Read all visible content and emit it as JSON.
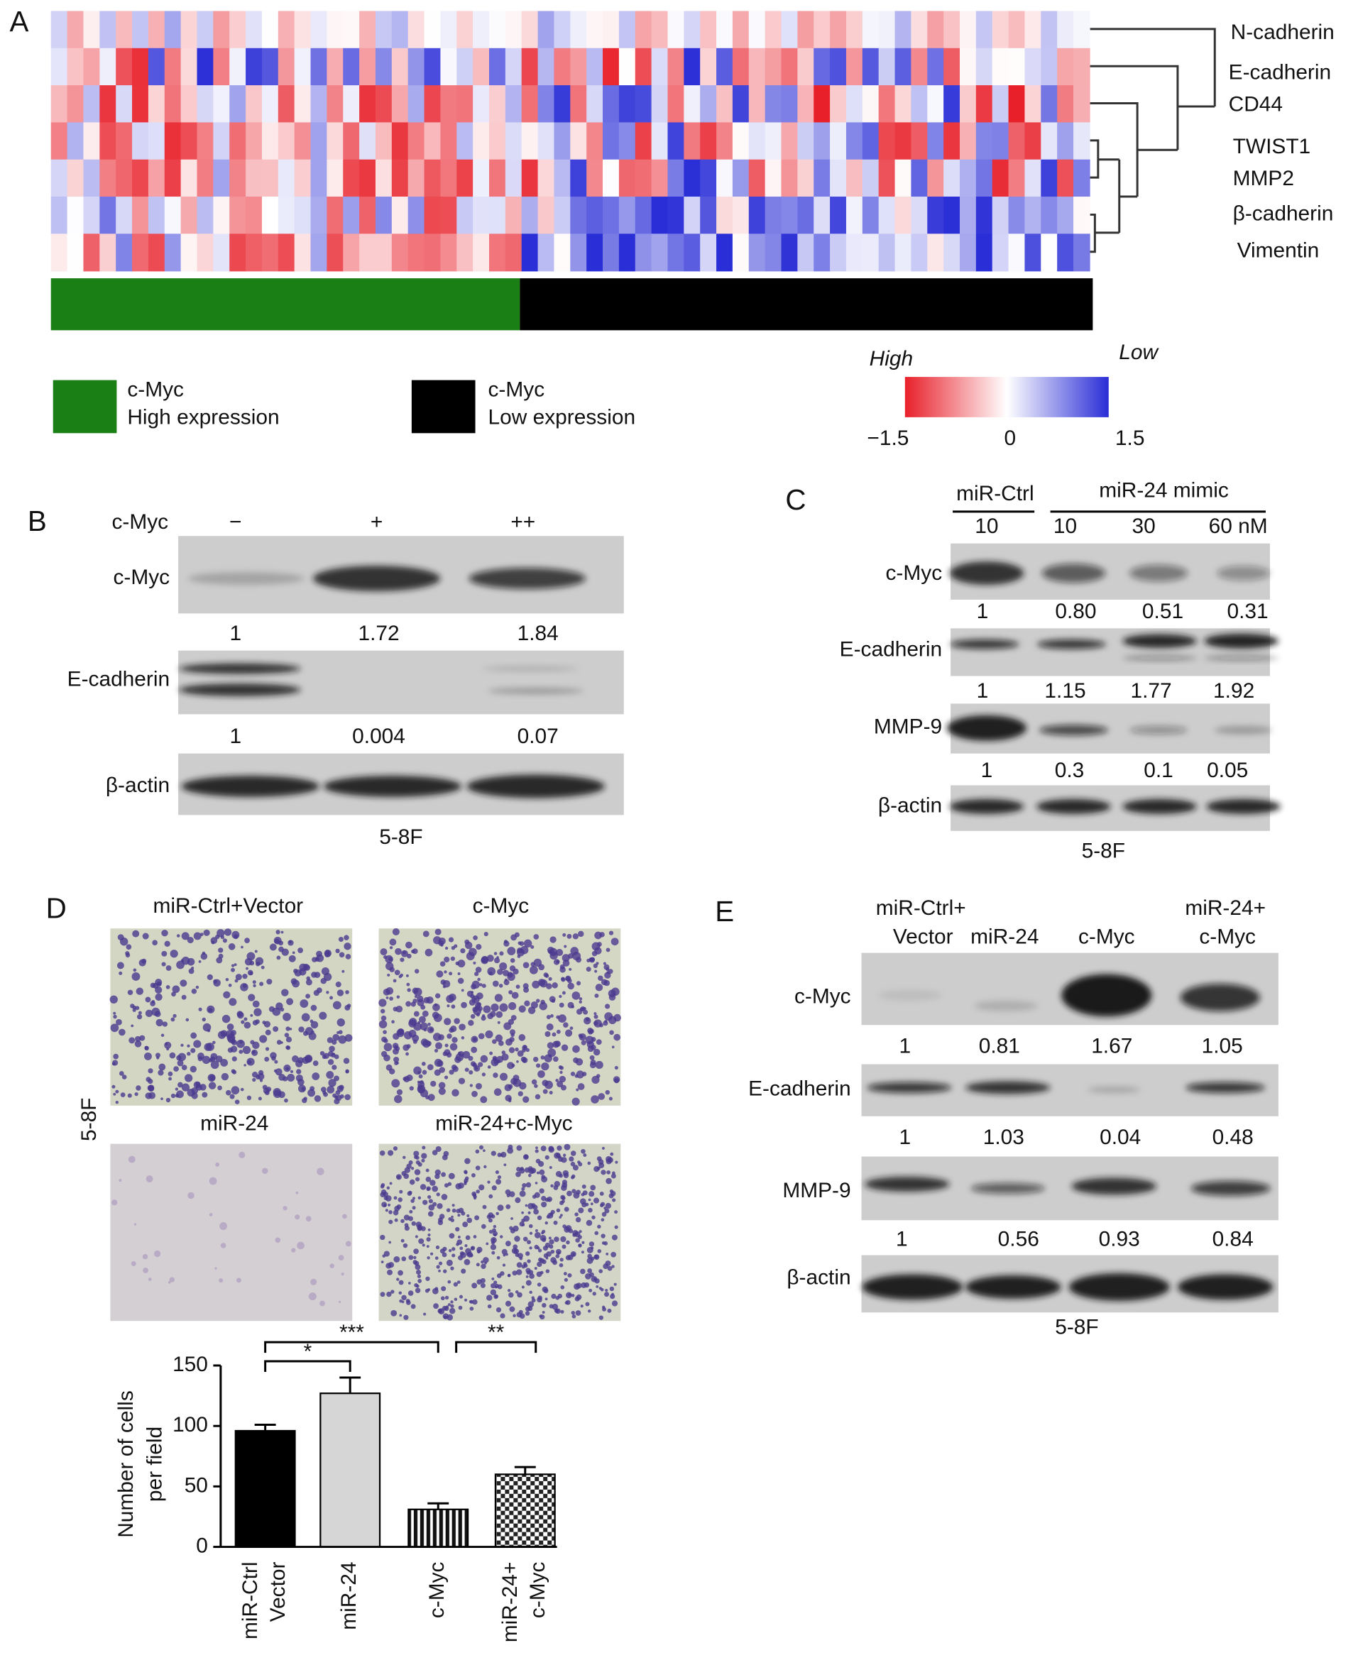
{
  "panels": {
    "A": {
      "label": "A",
      "genes": [
        "N-cadherin",
        "E-cadherin",
        "CD44",
        "TWIST1",
        "MMP2",
        "β-cadherin",
        "Vimentin"
      ],
      "legend": [
        {
          "title": "c-Myc",
          "text": "High expression"
        },
        {
          "title": "c-Myc",
          "text": "Low expression"
        }
      ],
      "colorbar": {
        "high": "High",
        "low": "Low",
        "ticks": [
          "−1.5",
          "0",
          "1.5"
        ]
      }
    },
    "B": {
      "label": "B",
      "condition": "c-Myc",
      "levels": [
        "−",
        "+",
        "++"
      ],
      "rows": [
        {
          "name": "c-Myc",
          "quant": [
            "1",
            "1.72",
            "1.84"
          ]
        },
        {
          "name": "E-cadherin",
          "quant": [
            "1",
            "0.004",
            "0.07"
          ]
        },
        {
          "name": "β-actin"
        }
      ],
      "cell_line": "5-8F"
    },
    "C": {
      "label": "C",
      "groups": [
        "miR-Ctrl",
        "miR-24 mimic"
      ],
      "doses": [
        "10",
        "10",
        "30",
        "60 nM"
      ],
      "rows": [
        {
          "name": "c-Myc",
          "quant": [
            "1",
            "0.80",
            "0.51",
            "0.31"
          ]
        },
        {
          "name": "E-cadherin",
          "quant": [
            "1",
            "1.15",
            "1.77",
            "1.92"
          ]
        },
        {
          "name": "MMP-9",
          "quant": [
            "1",
            "0.3",
            "0.1",
            "0.05"
          ]
        },
        {
          "name": "β-actin"
        }
      ],
      "cell_line": "5-8F"
    },
    "D": {
      "label": "D",
      "images": [
        "miR-Ctrl+Vector",
        "c-Myc",
        "miR-24",
        "miR-24+c-Myc"
      ],
      "cell_line": "5-8F"
    },
    "E": {
      "label": "E",
      "headers": [
        [
          "miR-Ctrl+",
          "Vector"
        ],
        [
          "miR-24"
        ],
        [
          "c-Myc"
        ],
        [
          "miR-24+",
          "c-Myc"
        ]
      ],
      "rows": [
        {
          "name": "c-Myc",
          "quant": [
            "1",
            "0.81",
            "1.67",
            "1.05"
          ]
        },
        {
          "name": "E-cadherin",
          "quant": [
            "1",
            "1.03",
            "0.04",
            "0.48"
          ]
        },
        {
          "name": "MMP-9",
          "quant": [
            "1",
            "0.56",
            "0.93",
            "0.84"
          ]
        },
        {
          "name": "β-actin"
        }
      ],
      "cell_line": "5-8F"
    }
  },
  "chart_data": {
    "type": "bar",
    "ylabel": [
      "Number of cells",
      "per field"
    ],
    "categories": [
      [
        "miR-Ctrl",
        "Vector"
      ],
      [
        "miR-24"
      ],
      [
        "c-Myc"
      ],
      [
        "miR-24+",
        "c-Myc"
      ]
    ],
    "values": [
      96,
      127,
      31,
      60
    ],
    "errors": [
      5,
      13,
      5,
      6
    ],
    "ylim": [
      0,
      150
    ],
    "yticks": [
      0,
      50,
      100,
      150
    ],
    "significance": [
      "*",
      "***",
      "**"
    ]
  }
}
